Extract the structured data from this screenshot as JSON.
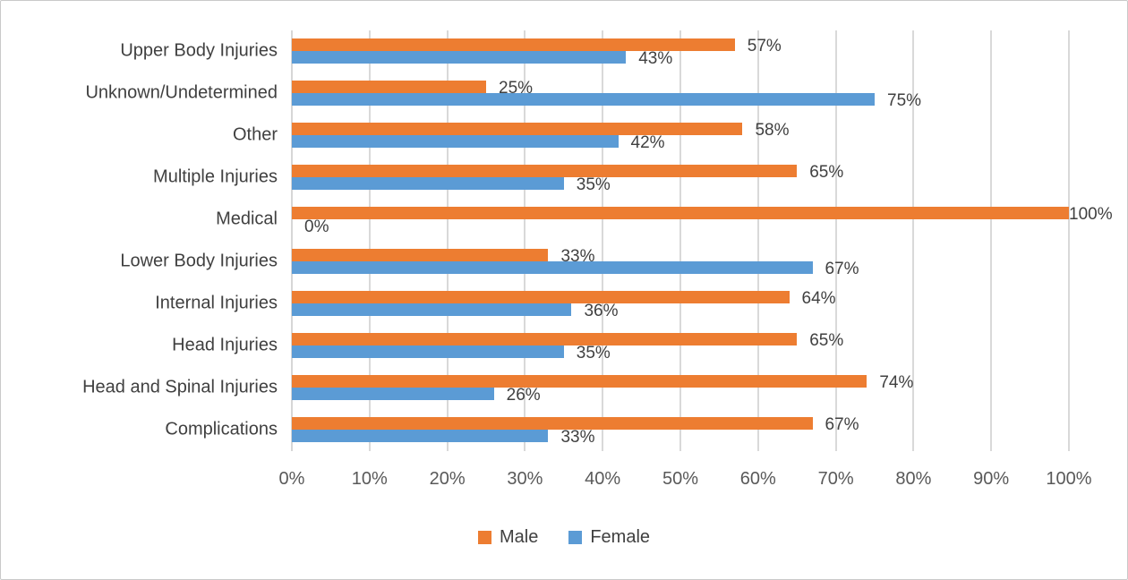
{
  "chart_data": {
    "type": "bar",
    "orientation": "horizontal",
    "title": "",
    "xlabel": "",
    "ylabel": "",
    "categories": [
      "Upper Body Injuries",
      "Unknown/Undetermined",
      "Other",
      "Multiple Injuries",
      "Medical",
      "Lower Body Injuries",
      "Internal Injuries",
      "Head Injuries",
      "Head and Spinal Injuries",
      "Complications"
    ],
    "series": [
      {
        "name": "Male",
        "color": "#ED7D31",
        "values": [
          57,
          25,
          58,
          65,
          100,
          33,
          64,
          65,
          74,
          67
        ]
      },
      {
        "name": "Female",
        "color": "#5B9BD5",
        "values": [
          43,
          75,
          42,
          35,
          0,
          67,
          36,
          35,
          26,
          33
        ]
      }
    ],
    "data_labels": {
      "Male": [
        "57%",
        "25%",
        "58%",
        "65%",
        "100%",
        "33%",
        "64%",
        "65%",
        "74%",
        "67%"
      ],
      "Female": [
        "43%",
        "75%",
        "42%",
        "35%",
        "0%",
        "67%",
        "36%",
        "35%",
        "26%",
        "33%"
      ]
    },
    "x_axis": {
      "min": 0,
      "max": 100,
      "tick_labels": [
        "0%",
        "10%",
        "20%",
        "30%",
        "40%",
        "50%",
        "60%",
        "70%",
        "80%",
        "90%",
        "100%"
      ]
    },
    "grid": "vertical",
    "legend": {
      "position": "bottom",
      "entries": [
        "Male",
        "Female"
      ]
    },
    "style": {
      "gridline_color": "#D9D9D9",
      "axis_line_color": "#D6D6D6",
      "data_label_color": "#404040",
      "tick_label_color": "#595959",
      "category_label_color": "#404040"
    }
  }
}
